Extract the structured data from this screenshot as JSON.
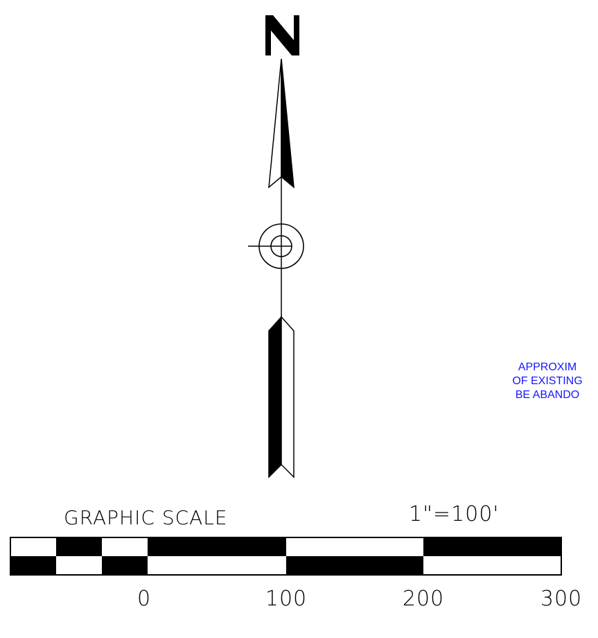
{
  "north_arrow": {
    "letter": "N"
  },
  "graphic_scale": {
    "title": "GRAPHIC SCALE",
    "ratio": "1\"=100'",
    "ticks": [
      "0",
      "100",
      "200",
      "300"
    ]
  },
  "note": {
    "lines": [
      "APPROXIM",
      "OF EXISTING",
      "BE ABANDO"
    ]
  },
  "colors": {
    "ink": "#000000",
    "note": "#1616ff"
  }
}
